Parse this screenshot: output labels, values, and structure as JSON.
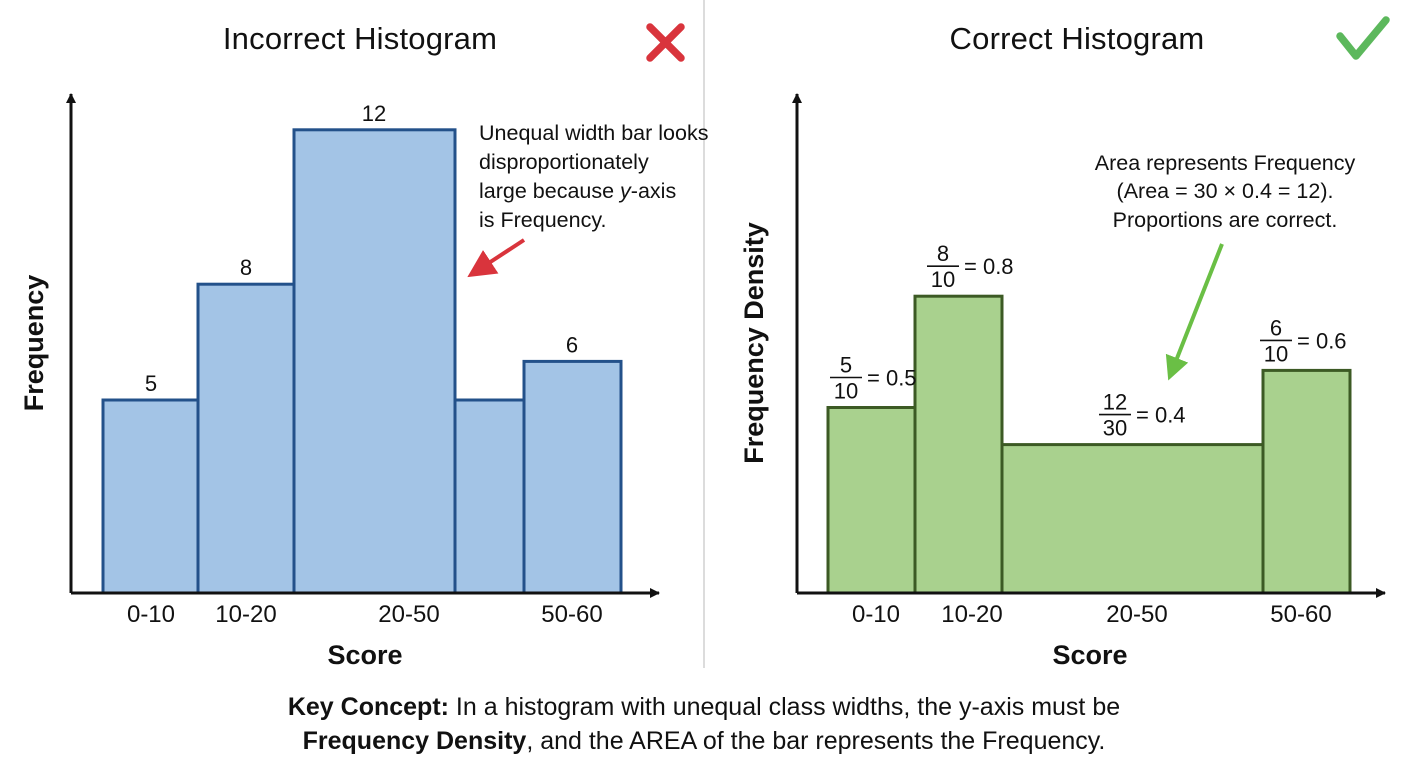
{
  "chart_data": [
    {
      "type": "bar",
      "title": "Incorrect Histogram",
      "status": "incorrect",
      "xlabel": "Score",
      "ylabel": "Frequency",
      "categories": [
        "0-10",
        "10-20",
        "20-50",
        "50-60"
      ],
      "bins": [
        [
          0,
          10
        ],
        [
          10,
          20
        ],
        [
          20,
          50
        ],
        [
          50,
          60
        ]
      ],
      "values": [
        5,
        8,
        12,
        6
      ],
      "data_labels": [
        "5",
        "8",
        "12",
        "6"
      ],
      "ylim": [
        0,
        14
      ],
      "grid": false,
      "annotation": [
        "Unequal width bar looks",
        "disproportionately",
        "large because y-axis",
        "is Frequency."
      ],
      "colors": {
        "fill": "#a3c4e6",
        "stroke": "#23518a",
        "arrow": "#d9343c",
        "status": "#d9343c"
      }
    },
    {
      "type": "bar",
      "title": "Correct Histogram",
      "status": "correct",
      "xlabel": "Score",
      "ylabel": "Frequency Density",
      "categories": [
        "0-10",
        "10-20",
        "20-50",
        "50-60"
      ],
      "bins": [
        [
          0,
          10
        ],
        [
          10,
          20
        ],
        [
          20,
          50
        ],
        [
          50,
          60
        ]
      ],
      "values": [
        0.5,
        0.8,
        0.4,
        0.6
      ],
      "data_labels": [
        {
          "num": "5",
          "den": "10",
          "result": "= 0.5"
        },
        {
          "num": "8",
          "den": "10",
          "result": "= 0.8"
        },
        {
          "num": "12",
          "den": "30",
          "result": "= 0.4"
        },
        {
          "num": "6",
          "den": "10",
          "result": "= 0.6"
        }
      ],
      "ylim": [
        0,
        1.15
      ],
      "grid": false,
      "annotation": [
        "Area represents Frequency",
        "(Area = 30 × 0.4 = 12).",
        "Proportions are correct."
      ],
      "colors": {
        "fill": "#a9d18e",
        "stroke": "#3c5a24",
        "arrow": "#6abf45",
        "status": "#5cb85c"
      }
    }
  ],
  "key_concept": {
    "lead": "Key Concept:",
    "text1": " In a histogram with unequal class widths, the y-axis must be",
    "bold2": "Frequency Density",
    "text2": ", and the AREA of the bar represents the Frequency."
  }
}
